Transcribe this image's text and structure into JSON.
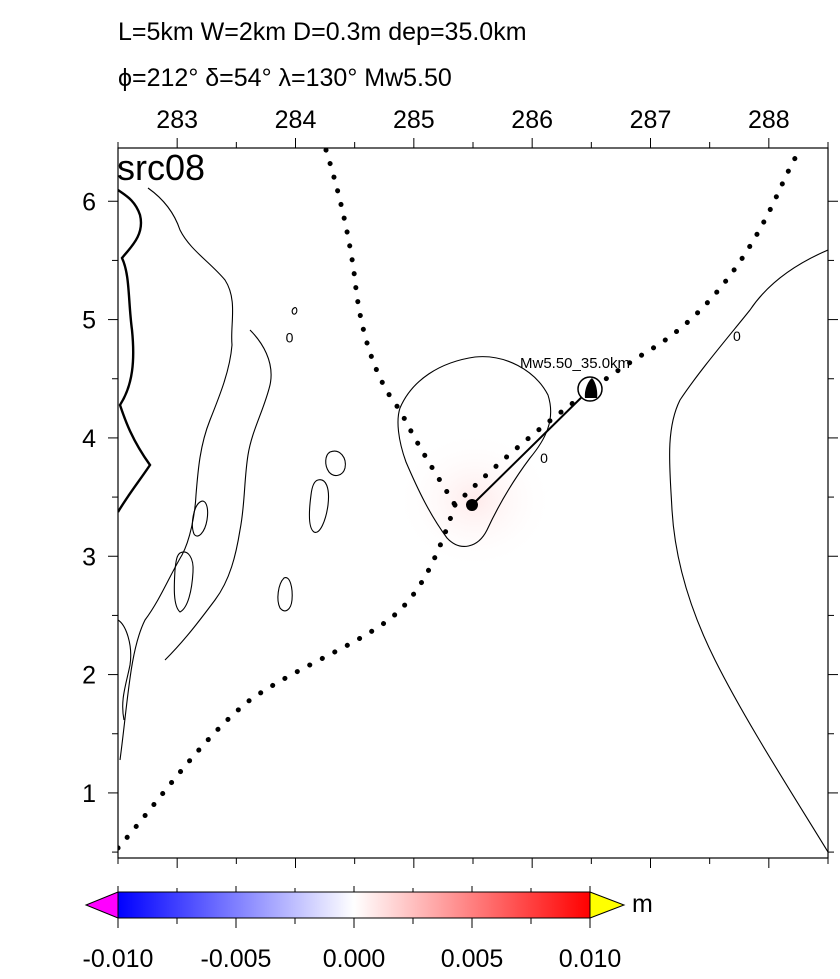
{
  "title_line1": "L=5km W=2km D=0.3m dep=35.0km",
  "title_line2": "ϕ=212° δ=54° λ=130° Mw5.50",
  "panel_label": "src08",
  "x_axis": {
    "min": 282.5,
    "max": 288.5,
    "ticks": [
      "283",
      "284",
      "285",
      "286",
      "287",
      "288"
    ],
    "tick_values": [
      283,
      284,
      285,
      286,
      287,
      288
    ]
  },
  "y_axis": {
    "min": 0.45,
    "max": 6.45,
    "ticks": [
      "1",
      "2",
      "3",
      "4",
      "5",
      "6"
    ],
    "tick_values": [
      1,
      2,
      3,
      4,
      5,
      6
    ]
  },
  "contours": {
    "zero_label": "0",
    "label_positions": [
      {
        "x": 283.95,
        "y": 4.85
      },
      {
        "x": 286.1,
        "y": 3.83
      },
      {
        "x": 287.73,
        "y": 4.86
      }
    ]
  },
  "event": {
    "label": "Mw5.50_35.0km",
    "x": 286.5,
    "y": 4.4
  },
  "epicenter": {
    "x": 285.5,
    "y": 3.4
  },
  "colorbar": {
    "unit": "m",
    "min": -0.01,
    "max": 0.01,
    "tick_labels": [
      "-0.010",
      "-0.005",
      "0.000",
      "0.005",
      "0.010"
    ],
    "tick_values": [
      -0.01,
      -0.005,
      0.0,
      0.005,
      0.01
    ],
    "colors": {
      "low_end": "#ff00ff",
      "low": "#0000ff",
      "mid": "#ffffff",
      "high": "#ff0000",
      "high_end": "#ffff00"
    }
  }
}
